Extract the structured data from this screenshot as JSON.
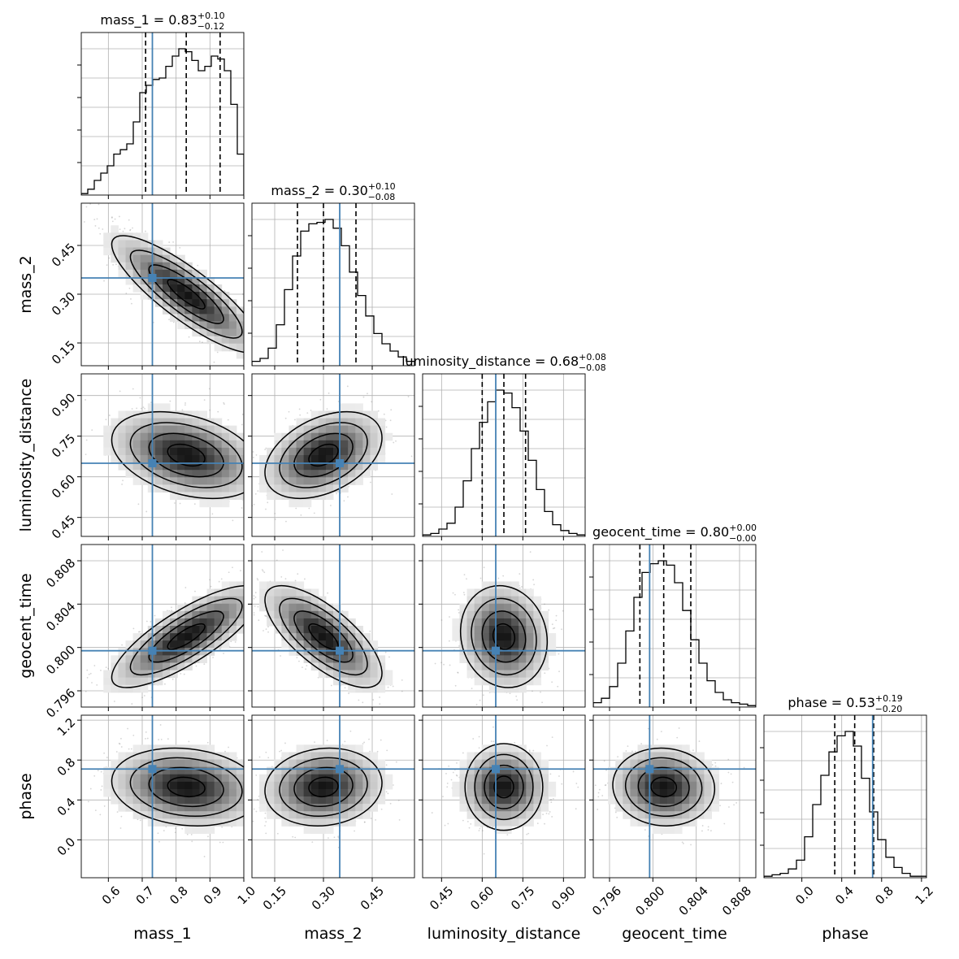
{
  "chart_data": {
    "type": "corner",
    "parameters": [
      "mass_1",
      "mass_2",
      "luminosity_distance",
      "geocent_time",
      "phase"
    ],
    "titles": [
      {
        "main": "mass_1 = 0.83",
        "sup": "+0.10",
        "sub": "−0.12"
      },
      {
        "main": "mass_2 = 0.30",
        "sup": "+0.10",
        "sub": "−0.08"
      },
      {
        "main": "luminosity_distance = 0.68",
        "sup": "+0.08",
        "sub": "−0.08"
      },
      {
        "main": "geocent_time = 0.80",
        "sup": "+0.00",
        "sub": "−0.00"
      },
      {
        "main": "phase = 0.53",
        "sup": "+0.19",
        "sub": "−0.20"
      }
    ],
    "ranges": [
      [
        0.52,
        1.0
      ],
      [
        0.08,
        0.58
      ],
      [
        0.38,
        0.98
      ],
      [
        0.7945,
        0.8095
      ],
      [
        -0.38,
        1.25
      ]
    ],
    "ticks": [
      [
        "0.6",
        "0.7",
        "0.8",
        "0.9",
        "1.0"
      ],
      [
        "0.15",
        "0.30",
        "0.45"
      ],
      [
        "0.45",
        "0.60",
        "0.75",
        "0.90"
      ],
      [
        "0.796",
        "0.800",
        "0.804",
        "0.808"
      ],
      [
        "0.0",
        "0.4",
        "0.8",
        "1.2"
      ]
    ],
    "truths": [
      0.73,
      0.35,
      0.65,
      0.7997,
      0.71
    ],
    "quantiles": [
      [
        0.71,
        0.83,
        0.93
      ],
      [
        0.22,
        0.3,
        0.4
      ],
      [
        0.6,
        0.68,
        0.76
      ],
      [
        0.7988,
        0.801,
        0.8035
      ],
      [
        0.33,
        0.53,
        0.72
      ]
    ],
    "histograms": [
      [
        0.01,
        0.04,
        0.1,
        0.15,
        0.2,
        0.28,
        0.31,
        0.35,
        0.5,
        0.7,
        0.75,
        0.79,
        0.8,
        0.88,
        0.95,
        1.0,
        0.98,
        0.92,
        0.85,
        0.88,
        0.95,
        0.93,
        0.85,
        0.62,
        0.28
      ],
      [
        0.03,
        0.05,
        0.12,
        0.28,
        0.52,
        0.75,
        0.92,
        0.97,
        0.98,
        1.0,
        0.94,
        0.82,
        0.64,
        0.48,
        0.34,
        0.22,
        0.15,
        0.1,
        0.06,
        0.03
      ],
      [
        0.01,
        0.02,
        0.05,
        0.09,
        0.2,
        0.38,
        0.6,
        0.78,
        0.92,
        1.0,
        0.98,
        0.88,
        0.72,
        0.52,
        0.32,
        0.17,
        0.08,
        0.04,
        0.02,
        0.01
      ],
      [
        0.03,
        0.06,
        0.14,
        0.3,
        0.52,
        0.75,
        0.92,
        0.98,
        1.0,
        0.97,
        0.85,
        0.66,
        0.46,
        0.3,
        0.18,
        0.1,
        0.05,
        0.03,
        0.02,
        0.01
      ],
      [
        0.01,
        0.02,
        0.03,
        0.06,
        0.12,
        0.28,
        0.5,
        0.7,
        0.86,
        0.97,
        1.0,
        0.9,
        0.68,
        0.45,
        0.26,
        0.14,
        0.07,
        0.03,
        0.01,
        0.01
      ]
    ],
    "correlations": {
      "1,0": -0.85,
      "2,0": -0.35,
      "2,1": 0.4,
      "3,0": 0.8,
      "3,1": -0.72,
      "3,2": -0.1,
      "4,0": -0.15,
      "4,1": 0.1,
      "4,2": 0.0,
      "4,3": -0.05
    }
  }
}
